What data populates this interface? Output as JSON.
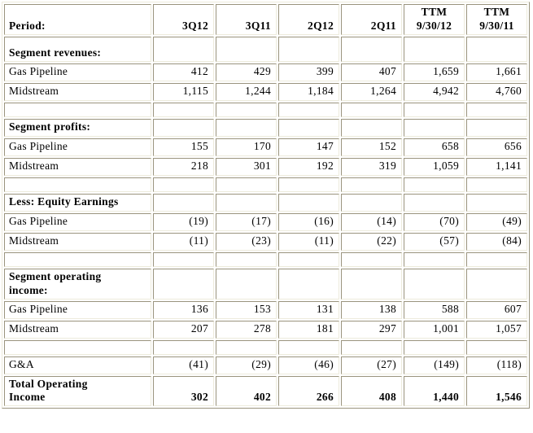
{
  "colors": {
    "border_dark": "#9a947e",
    "border_light": "#edebdc",
    "background": "#ffffff",
    "text": "#000000"
  },
  "table": {
    "header": {
      "period_label": "Period:",
      "cols": [
        "3Q12",
        "3Q11",
        "2Q12",
        "2Q11",
        {
          "line1": "TTM",
          "line2": "9/30/12"
        },
        {
          "line1": "TTM",
          "line2": "9/30/11"
        }
      ]
    },
    "rows": [
      {
        "label": "Segment revenues:",
        "values": [
          "",
          "",
          "",
          "",
          "",
          ""
        ]
      },
      {
        "label": "Gas Pipeline",
        "values": [
          "412",
          "429",
          "399",
          "407",
          "1,659",
          "1,661"
        ]
      },
      {
        "label": "Midstream",
        "values": [
          "1,115",
          "1,244",
          "1,184",
          "1,264",
          "4,942",
          "4,760"
        ]
      },
      {
        "label": "",
        "values": [
          "",
          "",
          "",
          "",
          "",
          ""
        ]
      },
      {
        "label": "Segment profits:",
        "values": [
          "",
          "",
          "",
          "",
          "",
          ""
        ]
      },
      {
        "label": "Gas Pipeline",
        "values": [
          "155",
          "170",
          "147",
          "152",
          "658",
          "656"
        ]
      },
      {
        "label": "Midstream",
        "values": [
          "218",
          "301",
          "192",
          "319",
          "1,059",
          "1,141"
        ]
      },
      {
        "label": "",
        "values": [
          "",
          "",
          "",
          "",
          "",
          ""
        ]
      },
      {
        "label": "Less: Equity Earnings",
        "values": [
          "",
          "",
          "",
          "",
          "",
          ""
        ]
      },
      {
        "label": "Gas Pipeline",
        "values": [
          "(19)",
          "(17)",
          "(16)",
          "(14)",
          "(70)",
          "(49)"
        ]
      },
      {
        "label": "Midstream",
        "values": [
          "(11)",
          "(23)",
          "(11)",
          "(22)",
          "(57)",
          "(84)"
        ]
      },
      {
        "label": "",
        "values": [
          "",
          "",
          "",
          "",
          "",
          ""
        ]
      },
      {
        "label_line1": "Segment operating",
        "label_line2": "income:",
        "values": [
          "",
          "",
          "",
          "",
          "",
          ""
        ]
      },
      {
        "label": "Gas Pipeline",
        "values": [
          "136",
          "153",
          "131",
          "138",
          "588",
          "607"
        ]
      },
      {
        "label": "Midstream",
        "values": [
          "207",
          "278",
          "181",
          "297",
          "1,001",
          "1,057"
        ]
      },
      {
        "label": "",
        "values": [
          "",
          "",
          "",
          "",
          "",
          ""
        ]
      },
      {
        "label": "G&A",
        "values": [
          "(41)",
          "(29)",
          "(46)",
          "(27)",
          "(149)",
          "(118)"
        ]
      },
      {
        "label_line1": "Total Operating",
        "label_line2": "Income",
        "values": [
          "302",
          "402",
          "266",
          "408",
          "1,440",
          "1,546"
        ]
      }
    ]
  }
}
